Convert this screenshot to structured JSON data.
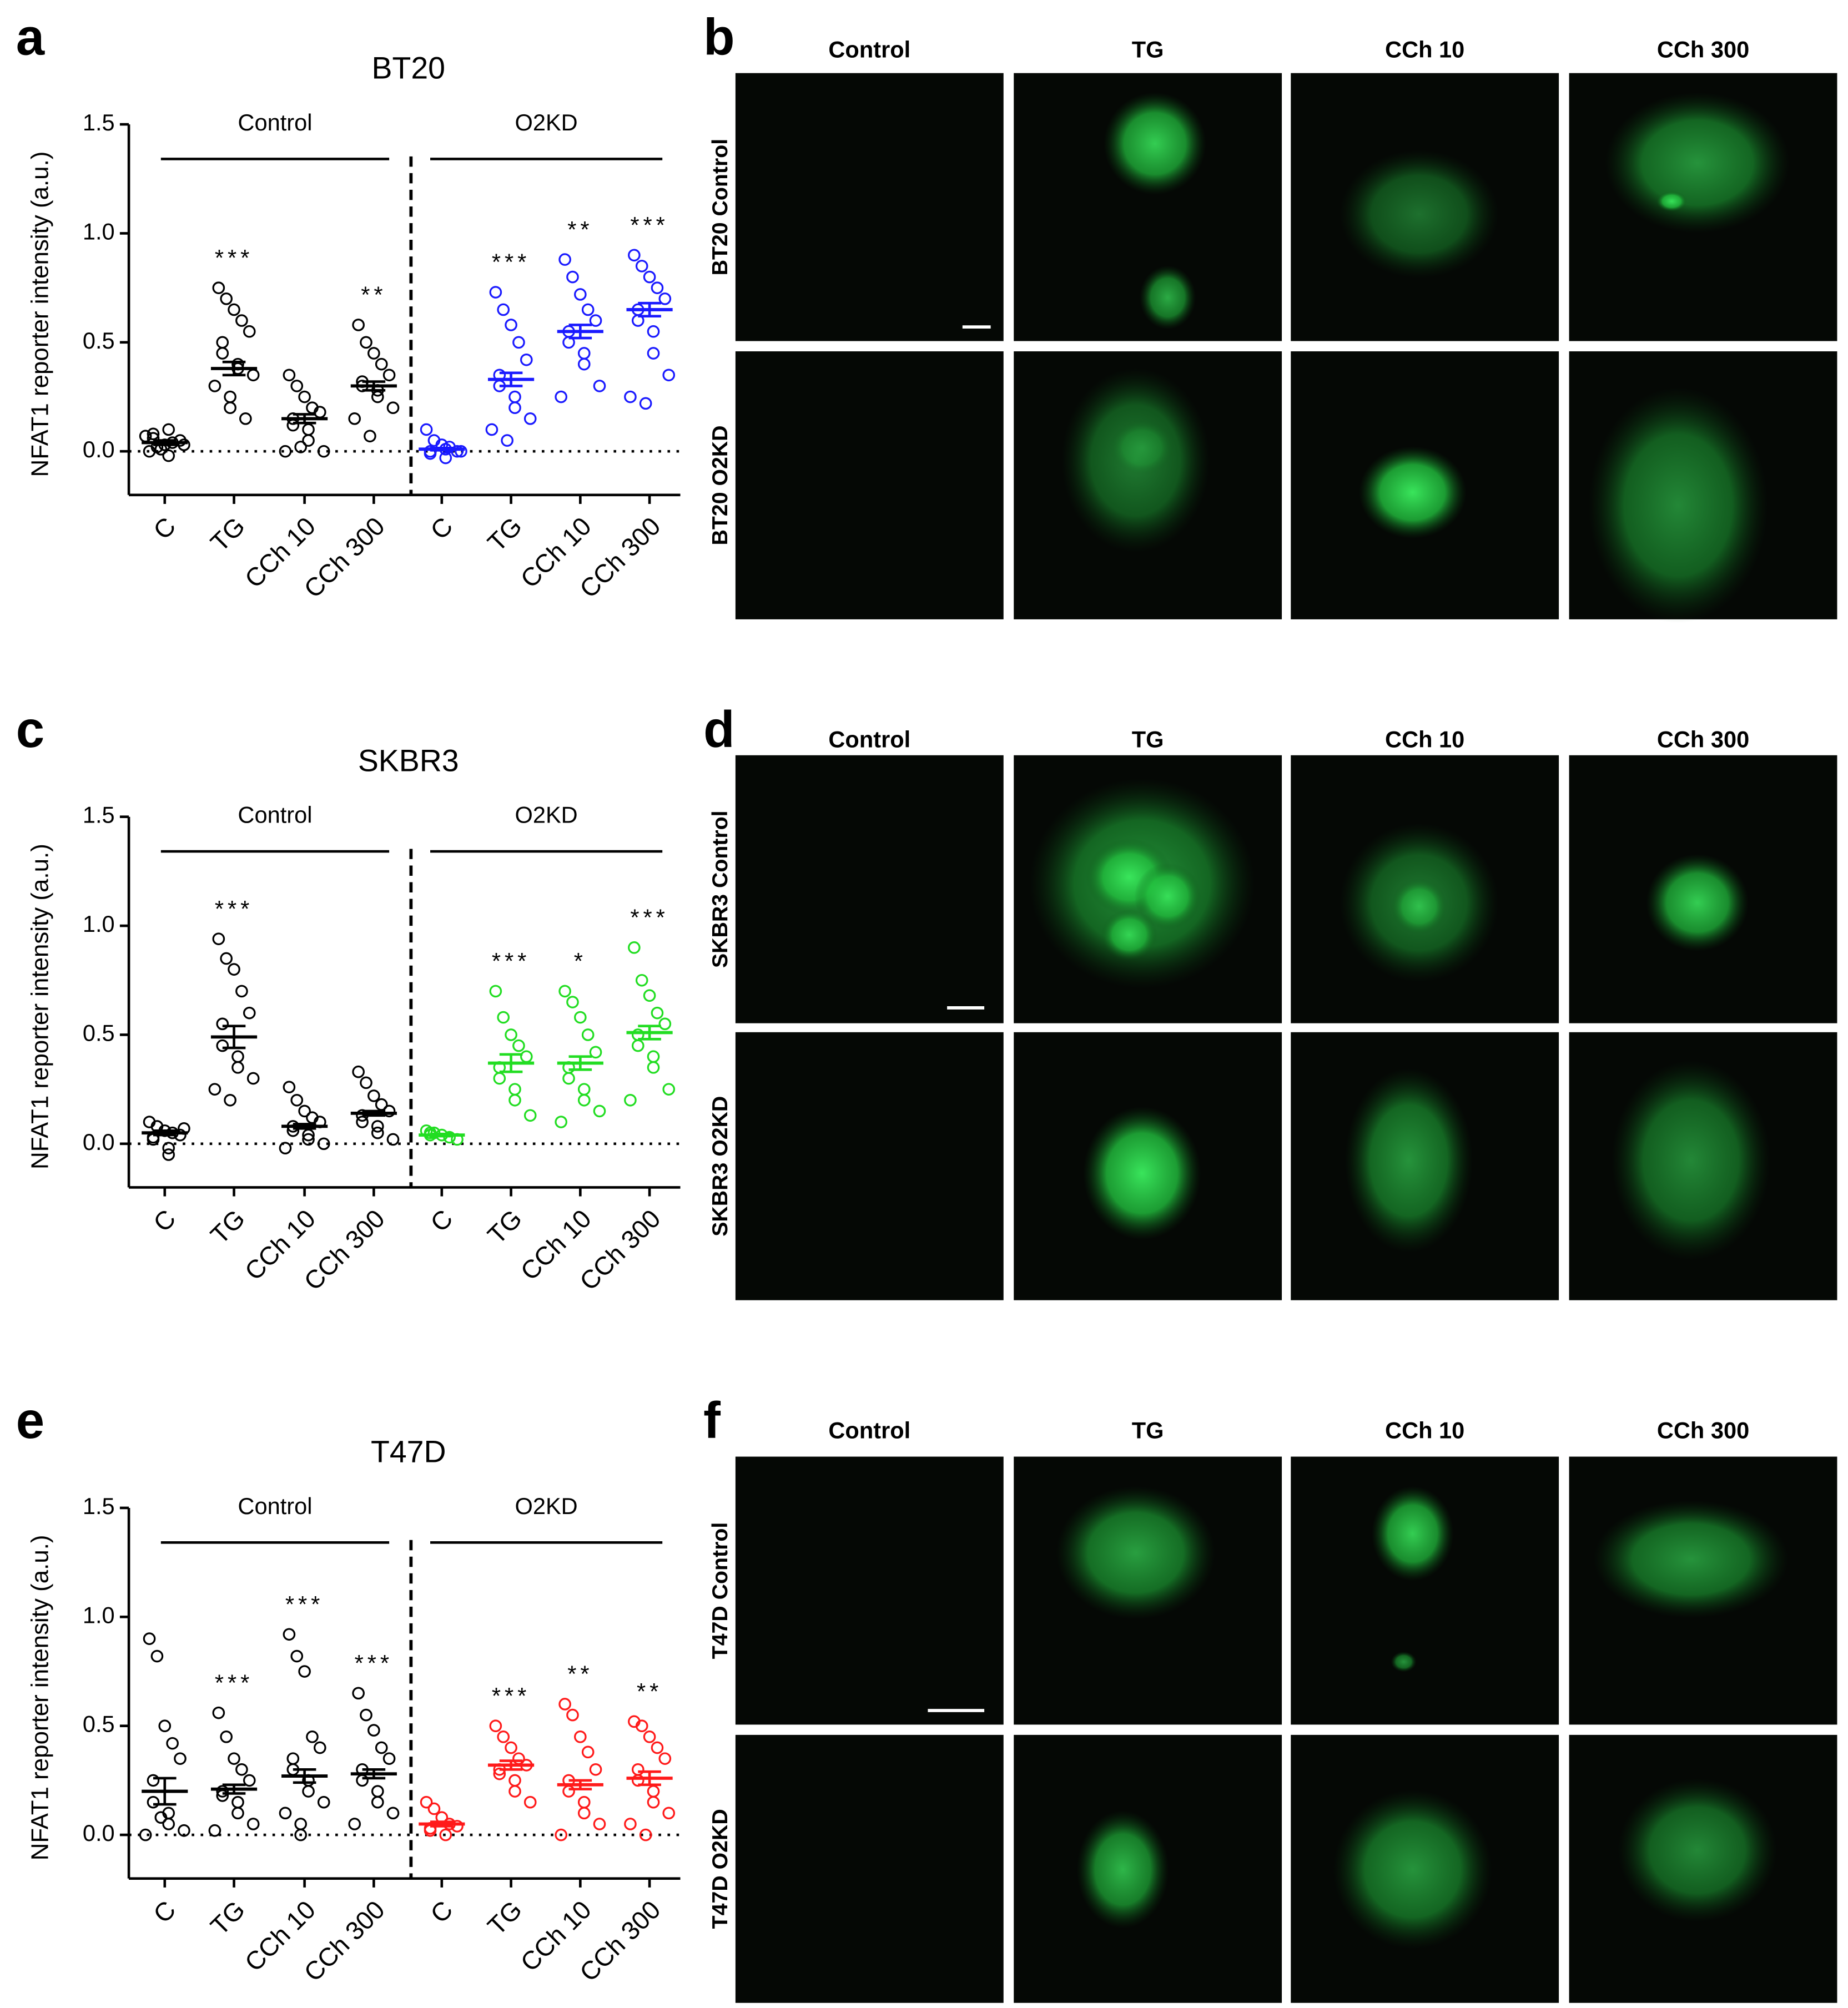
{
  "chart_data": [
    {
      "type": "dotplot",
      "panel": "a",
      "title": "BT20",
      "ylabel": "NFAT1 reporter intensity (a.u.)",
      "ylim": [
        -0.2,
        1.5
      ],
      "yticks": [
        {
          "value": 0,
          "label": "0.0"
        },
        0.5,
        {
          "value": 1,
          "label": "1.0"
        },
        1.5
      ],
      "zero_line": true,
      "series": [
        {
          "name": "Control",
          "color": "#000000",
          "categories": [
            "C",
            "TG",
            "CCh 10",
            "CCh 300"
          ],
          "points": [
            [
              0.0,
              0.02,
              0.03,
              0.04,
              0.05,
              0.06,
              0.08,
              0.1,
              -0.02,
              0.03,
              0.07,
              0.01
            ],
            [
              0.75,
              0.7,
              0.65,
              0.6,
              0.55,
              0.5,
              0.45,
              0.4,
              0.38,
              0.35,
              0.3,
              0.25,
              0.2,
              0.15
            ],
            [
              0.35,
              0.3,
              0.25,
              0.2,
              0.18,
              0.15,
              0.12,
              0.1,
              0.05,
              0.0,
              0.0,
              0.02
            ],
            [
              0.58,
              0.5,
              0.45,
              0.4,
              0.35,
              0.32,
              0.3,
              0.28,
              0.25,
              0.2,
              0.15,
              0.07
            ]
          ],
          "means": [
            0.04,
            0.38,
            0.15,
            0.3
          ],
          "sems": [
            0.01,
            0.03,
            0.02,
            0.02
          ],
          "significance": [
            null,
            "***",
            null,
            "**"
          ]
        },
        {
          "name": "O2KD",
          "color": "#1a1aff",
          "categories": [
            "C",
            "TG",
            "CCh 10",
            "CCh 300"
          ],
          "points": [
            [
              0.1,
              0.05,
              0.03,
              0.02,
              0.0,
              0.0,
              -0.01,
              -0.03,
              0.01,
              0.0
            ],
            [
              0.73,
              0.65,
              0.58,
              0.5,
              0.42,
              0.35,
              0.3,
              0.25,
              0.2,
              0.15,
              0.1,
              0.05
            ],
            [
              0.88,
              0.8,
              0.72,
              0.65,
              0.6,
              0.55,
              0.5,
              0.45,
              0.4,
              0.3,
              0.25
            ],
            [
              0.9,
              0.85,
              0.8,
              0.75,
              0.7,
              0.65,
              0.6,
              0.55,
              0.45,
              0.35,
              0.25,
              0.22
            ]
          ],
          "means": [
            0.01,
            0.33,
            0.55,
            0.65
          ],
          "sems": [
            0.005,
            0.03,
            0.03,
            0.03
          ],
          "significance": [
            null,
            "***",
            "**",
            "***"
          ]
        }
      ]
    },
    {
      "type": "dotplot",
      "panel": "c",
      "title": "SKBR3",
      "ylabel": "NFAT1 reporter intensity (a.u.)",
      "ylim": [
        -0.2,
        1.5
      ],
      "yticks": [
        {
          "value": 0,
          "label": "0.0"
        },
        0.5,
        {
          "value": 1,
          "label": "1.0"
        },
        1.5
      ],
      "zero_line": true,
      "series": [
        {
          "name": "Control",
          "color": "#000000",
          "categories": [
            "C",
            "TG",
            "CCh 10",
            "CCh 300"
          ],
          "points": [
            [
              0.1,
              0.08,
              0.06,
              0.05,
              0.04,
              0.03,
              0.02,
              -0.02,
              -0.05,
              0.07
            ],
            [
              0.94,
              0.85,
              0.8,
              0.7,
              0.6,
              0.55,
              0.45,
              0.4,
              0.35,
              0.3,
              0.25,
              0.2
            ],
            [
              0.26,
              0.2,
              0.15,
              0.12,
              0.1,
              0.08,
              0.06,
              0.04,
              0.02,
              0.0,
              -0.02
            ],
            [
              0.33,
              0.28,
              0.22,
              0.18,
              0.15,
              0.13,
              0.1,
              0.08,
              0.05,
              0.02
            ]
          ],
          "means": [
            0.05,
            0.49,
            0.08,
            0.14
          ],
          "sems": [
            0.01,
            0.05,
            0.01,
            0.01
          ],
          "significance": [
            null,
            "***",
            null,
            null
          ]
        },
        {
          "name": "O2KD",
          "color": "#22dd22",
          "categories": [
            "C",
            "TG",
            "CCh 10",
            "CCh 300"
          ],
          "points": [
            [
              0.06,
              0.05,
              0.04,
              0.03,
              0.02,
              0.05,
              0.04
            ],
            [
              0.7,
              0.58,
              0.5,
              0.45,
              0.4,
              0.35,
              0.3,
              0.25,
              0.2,
              0.13
            ],
            [
              0.7,
              0.65,
              0.58,
              0.5,
              0.42,
              0.35,
              0.3,
              0.25,
              0.2,
              0.15,
              0.1
            ],
            [
              0.9,
              0.75,
              0.68,
              0.6,
              0.55,
              0.5,
              0.45,
              0.4,
              0.35,
              0.25,
              0.2
            ]
          ],
          "means": [
            0.04,
            0.37,
            0.37,
            0.51
          ],
          "sems": [
            0.005,
            0.04,
            0.03,
            0.03
          ],
          "significance": [
            null,
            "***",
            "*",
            "***"
          ]
        }
      ]
    },
    {
      "type": "dotplot",
      "panel": "e",
      "title": "T47D",
      "ylabel": "NFAT1 reporter intensity (a.u.)",
      "ylim": [
        -0.2,
        1.5
      ],
      "yticks": [
        {
          "value": 0,
          "label": "0.0"
        },
        0.5,
        {
          "value": 1,
          "label": "1.0"
        },
        1.5
      ],
      "zero_line": true,
      "series": [
        {
          "name": "Control",
          "color": "#000000",
          "categories": [
            "C",
            "TG",
            "CCh 10",
            "CCh 300"
          ],
          "points": [
            [
              0.9,
              0.82,
              0.5,
              0.42,
              0.35,
              0.25,
              0.15,
              0.1,
              0.05,
              0.02,
              0.0,
              0.08
            ],
            [
              0.56,
              0.45,
              0.35,
              0.3,
              0.25,
              0.2,
              0.18,
              0.15,
              0.1,
              0.05,
              0.02
            ],
            [
              0.92,
              0.82,
              0.75,
              0.45,
              0.4,
              0.35,
              0.3,
              0.25,
              0.2,
              0.15,
              0.1,
              0.05,
              0.0
            ],
            [
              0.65,
              0.55,
              0.48,
              0.4,
              0.35,
              0.3,
              0.25,
              0.2,
              0.15,
              0.1,
              0.05
            ]
          ],
          "means": [
            0.2,
            0.21,
            0.27,
            0.28
          ],
          "sems": [
            0.06,
            0.02,
            0.03,
            0.02
          ],
          "significance": [
            null,
            "***",
            "***",
            "***"
          ]
        },
        {
          "name": "O2KD",
          "color": "#ff1a1a",
          "categories": [
            "C",
            "TG",
            "CCh 10",
            "CCh 300"
          ],
          "points": [
            [
              0.15,
              0.12,
              0.08,
              0.05,
              0.04,
              0.03,
              0.02,
              0.0
            ],
            [
              0.5,
              0.45,
              0.4,
              0.35,
              0.32,
              0.3,
              0.28,
              0.25,
              0.2,
              0.15
            ],
            [
              0.6,
              0.55,
              0.45,
              0.38,
              0.3,
              0.25,
              0.2,
              0.15,
              0.1,
              0.05,
              0.0
            ],
            [
              0.52,
              0.5,
              0.45,
              0.4,
              0.35,
              0.3,
              0.25,
              0.2,
              0.15,
              0.1,
              0.05,
              0.0
            ]
          ],
          "means": [
            0.05,
            0.32,
            0.23,
            0.26
          ],
          "sems": [
            0.01,
            0.02,
            0.02,
            0.03
          ],
          "significance": [
            null,
            "***",
            "**",
            "**"
          ]
        }
      ]
    }
  ],
  "micrographs": [
    {
      "panel": "b",
      "columns": [
        "Control",
        "TG",
        "CCh 10",
        "CCh 300"
      ],
      "rows": [
        "BT20 Control",
        "BT20 O2KD"
      ]
    },
    {
      "panel": "d",
      "columns": [
        "Control",
        "TG",
        "CCh 10",
        "CCh 300"
      ],
      "rows": [
        "SKBR3 Control",
        "SKBR3 O2KD"
      ]
    },
    {
      "panel": "f",
      "columns": [
        "Control",
        "TG",
        "CCh 10",
        "CCh 300"
      ],
      "rows": [
        "T47D Control",
        "T47D O2KD"
      ]
    }
  ]
}
